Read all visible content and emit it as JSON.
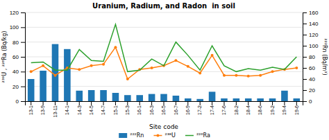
{
  "chart_data": {
    "type": "bar",
    "title": "Uranium, Radium, and Radon  in soil",
    "x_label": "Site code",
    "y_label": "²³⁸U , ²²⁶Ra (Bq/kg)",
    "y2_label": "²²²Rn (Bq/m³)",
    "categories": [
      "13-1",
      "13-9",
      "13-11",
      "14-1",
      "14-3",
      "14-5",
      "14-7",
      "15-1",
      "15-3",
      "16-1",
      "16-3",
      "16-5",
      "16-7",
      "16-9",
      "17-2",
      "17-4",
      "17-6",
      "18-2",
      "18-4",
      "18-6",
      "19-2",
      "19-4",
      "19-6"
    ],
    "series": [
      {
        "name": "²²²Rn",
        "type": "bar",
        "axis": "y2",
        "values": [
          40,
          55,
          103,
          94,
          19,
          20,
          20,
          15,
          11,
          11,
          13,
          13,
          10,
          5,
          4,
          17,
          5,
          5,
          5,
          5,
          5,
          19,
          5
        ]
      },
      {
        "name": "²³⁸U",
        "type": "line",
        "marker": "circle",
        "values": [
          40,
          48,
          35,
          45,
          43,
          48,
          50,
          73,
          30,
          43,
          45,
          48,
          55,
          47,
          38,
          62,
          35,
          35,
          34,
          35,
          40,
          43,
          45
        ]
      },
      {
        "name": "²²⁶Ra",
        "type": "line",
        "values": [
          52,
          53,
          42,
          42,
          70,
          55,
          54,
          104,
          40,
          42,
          57,
          48,
          80,
          62,
          42,
          75,
          48,
          40,
          44,
          42,
          46,
          43,
          60
        ]
      }
    ],
    "ylim": [
      0,
      120
    ],
    "yticks": [
      0,
      20,
      40,
      60,
      80,
      100,
      120
    ],
    "y2lim": [
      0,
      160
    ],
    "y2ticks": [
      0,
      20,
      40,
      60,
      80,
      100,
      120,
      140,
      160
    ],
    "grid": true,
    "legend": "bottom"
  }
}
